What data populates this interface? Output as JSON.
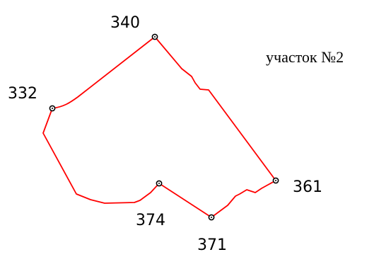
{
  "plot": {
    "title": "участок №2",
    "boundary_color": "#ff0000",
    "marker_color": "#000000"
  },
  "points": [
    {
      "id": "332",
      "label": "332"
    },
    {
      "id": "340",
      "label": "340"
    },
    {
      "id": "361",
      "label": "361"
    },
    {
      "id": "371",
      "label": "371"
    },
    {
      "id": "374",
      "label": "374"
    }
  ]
}
